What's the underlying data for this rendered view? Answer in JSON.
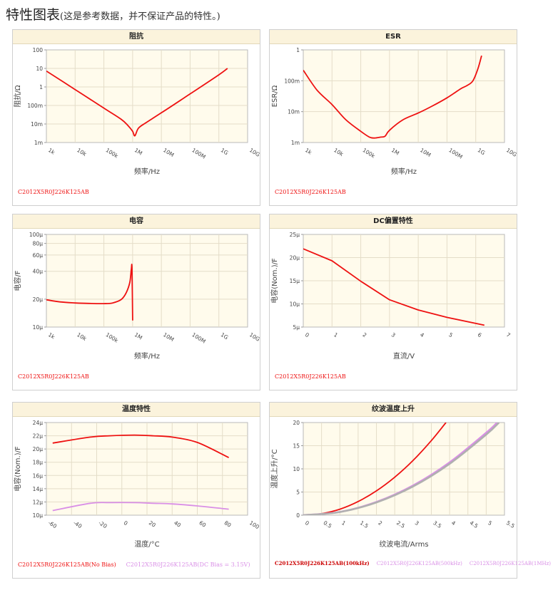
{
  "page": {
    "title": "特性图表",
    "subtitle": "(这是参考数据，并不保证产品的特性。)"
  },
  "colors": {
    "red": "#ee1111",
    "pink": "#d98fe6",
    "plot_bg": "#fffbec",
    "header_bg": "#fbf3dc"
  },
  "chart_data": [
    {
      "id": "impedance",
      "type": "line",
      "title": "阻抗",
      "xlabel": "频率/Hz",
      "ylabel": "阻抗/Ω",
      "xscale": "log",
      "yscale": "log",
      "xlim": [
        1000,
        10000000000
      ],
      "ylim": [
        0.001,
        100
      ],
      "xticks": [
        "1k",
        "10k",
        "100k",
        "1M",
        "10M",
        "100M",
        "1G",
        "10G"
      ],
      "yticks": [
        "100",
        "10",
        "1",
        "100m",
        "10m",
        "1m"
      ],
      "series": [
        {
          "name": "C2012X5R0J226K125AB",
          "color": "#ee1111",
          "x": [
            1000,
            10000,
            100000,
            400000,
            700000,
            1000000,
            1200000,
            1600000,
            3000000,
            10000000,
            100000000,
            1000000000,
            2000000000
          ],
          "y": [
            7.2,
            0.72,
            0.072,
            0.018,
            0.008,
            0.004,
            0.0023,
            0.006,
            0.012,
            0.04,
            0.42,
            4.5,
            10
          ]
        }
      ],
      "legend": [
        {
          "label": "C2012X5R0J226K125AB",
          "color": "#ee1111"
        }
      ]
    },
    {
      "id": "esr",
      "type": "line",
      "title": "ESR",
      "xlabel": "频率/Hz",
      "ylabel": "ESR/Ω",
      "xscale": "log",
      "yscale": "log",
      "xlim": [
        1000,
        10000000000
      ],
      "ylim": [
        0.001,
        1
      ],
      "xticks": [
        "1k",
        "10k",
        "100k",
        "1M",
        "10M",
        "100M",
        "1G",
        "10G"
      ],
      "yticks": [
        "1",
        "100m",
        "10m",
        "1m"
      ],
      "series": [
        {
          "name": "C2012X5R0J226K125AB",
          "color": "#ee1111",
          "x": [
            1000,
            3000,
            10000,
            30000,
            100000,
            200000,
            300000,
            500000,
            700000,
            1000000,
            3000000,
            10000000,
            30000000,
            100000000,
            300000000,
            500000000,
            800000000,
            1200000000,
            1600000000
          ],
          "y": [
            0.22,
            0.05,
            0.017,
            0.0055,
            0.0023,
            0.0015,
            0.0014,
            0.0015,
            0.0016,
            0.0025,
            0.0055,
            0.009,
            0.015,
            0.028,
            0.055,
            0.07,
            0.1,
            0.25,
            0.65
          ]
        }
      ],
      "legend": [
        {
          "label": "C2012X5R0J226K125AB",
          "color": "#ee1111"
        }
      ]
    },
    {
      "id": "capacitance",
      "type": "line",
      "title": "电容",
      "xlabel": "频率/Hz",
      "ylabel": "电容/F",
      "xscale": "log",
      "yscale": "log",
      "xlim": [
        1000,
        10000000000
      ],
      "ylim": [
        1e-05,
        0.0001
      ],
      "xticks": [
        "1k",
        "10k",
        "100k",
        "1M",
        "10M",
        "100M",
        "1G",
        "10G"
      ],
      "yticks": [
        "100μ",
        "80μ",
        "60μ",
        "40μ",
        "20μ",
        "10μ"
      ],
      "series": [
        {
          "name": "C2012X5R0J226K125AB",
          "color": "#ee1111",
          "x": [
            1000,
            3000,
            10000,
            30000,
            100000,
            200000,
            400000,
            600000,
            800000,
            900000,
            950000,
            1000000
          ],
          "y": [
            1.97e-05,
            1.87e-05,
            1.82e-05,
            1.8e-05,
            1.79e-05,
            1.82e-05,
            1.98e-05,
            2.35e-05,
            3.05e-05,
            4.2e-05,
            4.3e-05,
            1.18e-05
          ]
        }
      ],
      "legend": [
        {
          "label": "C2012X5R0J226K125AB",
          "color": "#ee1111"
        }
      ]
    },
    {
      "id": "dcbias",
      "type": "line",
      "title": "DC偏置特性",
      "xlabel": "直流/V",
      "ylabel": "电容(Nom.)/F",
      "xlim": [
        0,
        7
      ],
      "ylim": [
        5e-06,
        2.5e-05
      ],
      "xticks": [
        "0",
        "1",
        "2",
        "3",
        "4",
        "5",
        "6",
        "7"
      ],
      "yticks": [
        "25μ",
        "20μ",
        "15μ",
        "10μ",
        "5μ"
      ],
      "series": [
        {
          "name": "C2012X5R0J226K125AB",
          "color": "#ee1111",
          "x": [
            0,
            1,
            2,
            3,
            4,
            5,
            6.3
          ],
          "y": [
            2.19e-05,
            1.93e-05,
            1.49e-05,
            1.09e-05,
            8.7e-06,
            7.1e-06,
            5.4e-06
          ]
        }
      ],
      "legend": [
        {
          "label": "C2012X5R0J226K125AB",
          "color": "#ee1111"
        }
      ]
    },
    {
      "id": "temperature",
      "type": "line",
      "title": "温度特性",
      "xlabel": "温度/°C",
      "ylabel": "电容(Nom.)/F",
      "xlim": [
        -60,
        100
      ],
      "ylim": [
        1e-05,
        2.4e-05
      ],
      "xticks": [
        "-60",
        "-40",
        "-20",
        "0",
        "20",
        "40",
        "60",
        "80",
        "100"
      ],
      "yticks": [
        "24μ",
        "22μ",
        "20μ",
        "18μ",
        "16μ",
        "14μ",
        "12μ",
        "10μ"
      ],
      "series": [
        {
          "name": "C2012X5R0J226K125AB(No Bias)",
          "color": "#ee1111",
          "x": [
            -55,
            -25,
            -10,
            10,
            25,
            40,
            60,
            85
          ],
          "y": [
            2.09e-05,
            2.18e-05,
            2.2e-05,
            2.21e-05,
            2.2e-05,
            2.18e-05,
            2.1e-05,
            1.87e-05
          ]
        },
        {
          "name": "C2012X5R0J226K125AB(DC Bias = 3.15V)",
          "color": "#d98fe6",
          "x": [
            -55,
            -25,
            -10,
            10,
            25,
            40,
            60,
            85
          ],
          "y": [
            1.07e-05,
            1.18e-05,
            1.19e-05,
            1.19e-05,
            1.18e-05,
            1.17e-05,
            1.14e-05,
            1.09e-05
          ]
        }
      ],
      "legend": [
        {
          "label": "C2012X5R0J226K125AB(No Bias)",
          "color": "#ee1111"
        },
        {
          "label": "C2012X5R0J226K125AB(DC Bias = 3.15V)",
          "color": "#d98fe6"
        }
      ]
    },
    {
      "id": "ripple",
      "type": "line",
      "title": "纹波温度上升",
      "xlabel": "纹波电流/Arms",
      "ylabel": "温度上升/°C",
      "xlim": [
        0,
        5.5
      ],
      "ylim": [
        0,
        20
      ],
      "xticks": [
        "0",
        "0.5",
        "1",
        "1.5",
        "2",
        "2.5",
        "3",
        "3.5",
        "4",
        "4.5",
        "5",
        "5.5"
      ],
      "yticks": [
        "20",
        "15",
        "10",
        "5",
        "0"
      ],
      "series": [
        {
          "name": "C2012X5R0J226K125AB(100kHz)",
          "color": "#ee1111",
          "x": [
            0,
            0.5,
            1,
            1.5,
            2,
            2.5,
            3,
            3.5,
            3.9
          ],
          "y": [
            0,
            0.33,
            1.3,
            2.95,
            5.25,
            8.2,
            11.8,
            16.1,
            20
          ]
        },
        {
          "name": "C2012X5R0J226K125AB(500kHz)",
          "color": "#d98fe6",
          "x": [
            0,
            1,
            2,
            3,
            4,
            5,
            5.3
          ],
          "y": [
            0,
            0.7,
            2.85,
            6.4,
            11.4,
            17.8,
            20
          ]
        },
        {
          "name": "C2012X5R0J226K125AB(1MHz)",
          "color": "#b0b0b0",
          "x": [
            0,
            1,
            2,
            3,
            4,
            5,
            5.35
          ],
          "y": [
            0,
            0.68,
            2.75,
            6.2,
            11.1,
            17.4,
            20
          ]
        }
      ],
      "legend": [
        {
          "label": "C2012X5R0J226K125AB(100kHz)",
          "color": "#cc0000"
        },
        {
          "label": "C2012X5R0J226K125AB(500kHz)",
          "color": "#d98fe6"
        },
        {
          "label": "C2012X5R0J226K125AB(1MHz)",
          "color": "#d98fe6"
        }
      ]
    }
  ]
}
